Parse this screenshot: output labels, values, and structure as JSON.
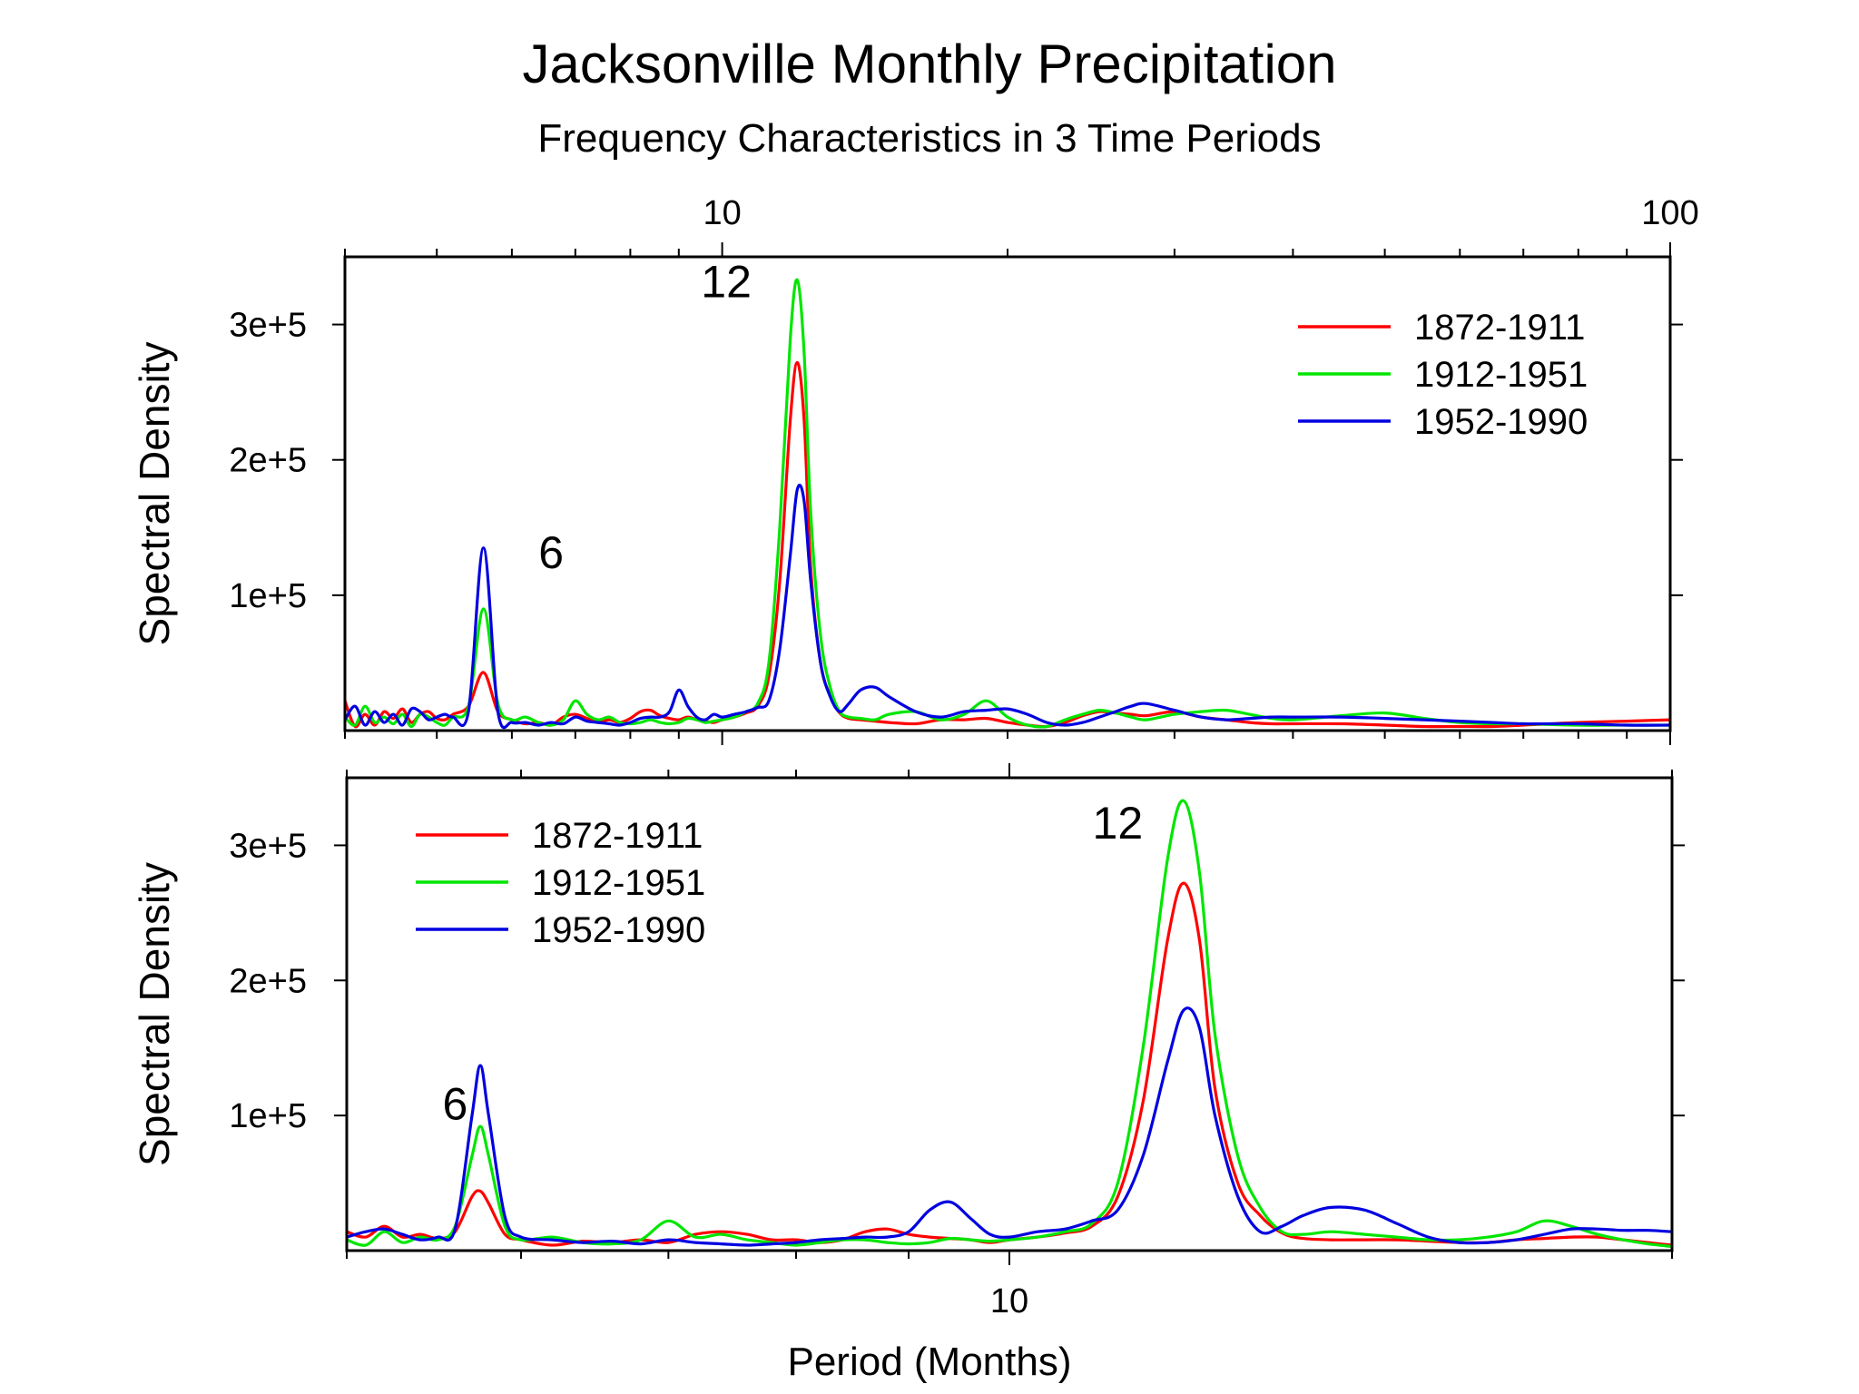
{
  "title": "Jacksonville Monthly Precipitation",
  "subtitle": "Frequency Characteristics in 3 Time Periods",
  "xlabel": "Period (Months)",
  "colors": {
    "1872-1911": "#ff0000",
    "1912-1951": "#00e600",
    "1952-1990": "#0000e0"
  },
  "chart_data": [
    {
      "type": "line",
      "panel": "top",
      "xscale": "log",
      "xlim": [
        4.0,
        100
      ],
      "ylim": [
        0,
        350000
      ],
      "xticks": [
        10,
        100
      ],
      "xtick_labels": [
        "10",
        "100"
      ],
      "xtick_position": "top",
      "yticks": [
        100000,
        200000,
        300000
      ],
      "ytick_labels": [
        "1e+5",
        "2e+5",
        "3e+5"
      ],
      "ylabel": "Spectral Density",
      "legend_position": "top-right",
      "annotations": [
        {
          "text": "12",
          "x": 10.1,
          "y": 320000
        },
        {
          "text": "6",
          "x": 6.6,
          "y": 120000
        }
      ],
      "series": [
        {
          "name": "1872-1911",
          "color": "#ff0000",
          "x": [
            4.0,
            4.1,
            4.2,
            4.3,
            4.4,
            4.5,
            4.6,
            4.7,
            4.8,
            4.9,
            5.0,
            5.1,
            5.2,
            5.4,
            5.6,
            5.8,
            6.0,
            6.2,
            6.4,
            6.6,
            6.8,
            7.0,
            7.2,
            7.4,
            7.6,
            7.8,
            8.0,
            8.2,
            8.4,
            8.6,
            8.8,
            9.0,
            9.2,
            9.4,
            9.6,
            9.8,
            10.0,
            10.3,
            10.6,
            10.9,
            11.2,
            11.5,
            11.8,
            12.0,
            12.2,
            12.4,
            12.7,
            13.0,
            13.3,
            13.6,
            14.0,
            14.5,
            15,
            16,
            17,
            18,
            19,
            20,
            21,
            22,
            23,
            24,
            25,
            26,
            27,
            28,
            30,
            32,
            34,
            36,
            38,
            40,
            45,
            50,
            55,
            60,
            65,
            70,
            80,
            90,
            100
          ],
          "y": [
            22000,
            3000,
            12000,
            4000,
            14000,
            9000,
            16000,
            6000,
            12000,
            14000,
            9000,
            8000,
            12000,
            18000,
            43000,
            14000,
            8000,
            5000,
            6000,
            4000,
            10000,
            12000,
            9000,
            6000,
            8000,
            6000,
            9000,
            14000,
            15000,
            11000,
            9000,
            8000,
            10000,
            8000,
            7000,
            6000,
            8000,
            10000,
            13000,
            18000,
            40000,
            110000,
            230000,
            272000,
            230000,
            120000,
            50000,
            26000,
            13000,
            9000,
            8000,
            7000,
            6000,
            5000,
            8000,
            8000,
            9000,
            6000,
            4000,
            3000,
            6000,
            11000,
            14000,
            13000,
            12000,
            11000,
            14000,
            10000,
            8000,
            6000,
            5000,
            5000,
            5000,
            4000,
            3000,
            3000,
            3000,
            4000,
            6000,
            7000,
            8000
          ]
        },
        {
          "name": "1912-1951",
          "color": "#00e600",
          "x": [
            4.0,
            4.1,
            4.2,
            4.3,
            4.4,
            4.5,
            4.6,
            4.7,
            4.8,
            4.9,
            5.0,
            5.1,
            5.2,
            5.4,
            5.6,
            5.8,
            6.0,
            6.2,
            6.4,
            6.6,
            6.8,
            7.0,
            7.2,
            7.4,
            7.6,
            7.8,
            8.0,
            8.2,
            8.4,
            8.6,
            8.8,
            9.0,
            9.2,
            9.4,
            9.6,
            9.8,
            10.0,
            10.3,
            10.6,
            10.9,
            11.2,
            11.5,
            11.8,
            12.0,
            12.2,
            12.4,
            12.7,
            13.0,
            13.3,
            13.6,
            14.0,
            14.5,
            15,
            16,
            17,
            18,
            19,
            20,
            21,
            22,
            23,
            24,
            25,
            26,
            27,
            28,
            30,
            32,
            34,
            36,
            38,
            40,
            45,
            50,
            55,
            60,
            65,
            70,
            80,
            90,
            100
          ],
          "y": [
            10000,
            4000,
            18000,
            6000,
            10000,
            5000,
            12000,
            3000,
            12000,
            10000,
            6000,
            4000,
            10000,
            18000,
            90000,
            20000,
            8000,
            10000,
            6000,
            4000,
            8000,
            22000,
            12000,
            8000,
            10000,
            6000,
            5000,
            6000,
            8000,
            6000,
            5000,
            6000,
            9000,
            8000,
            6000,
            7000,
            8000,
            10000,
            14000,
            20000,
            50000,
            150000,
            290000,
            333000,
            280000,
            160000,
            70000,
            32000,
            14000,
            10000,
            9000,
            8000,
            12000,
            14000,
            8000,
            12000,
            22000,
            10000,
            4000,
            3000,
            8000,
            12000,
            15000,
            13000,
            10000,
            8000,
            12000,
            14000,
            15000,
            12000,
            9000,
            8000,
            11000,
            13000,
            9000,
            6000,
            5000,
            5000,
            4000,
            4000,
            4000
          ]
        },
        {
          "name": "1952-1990",
          "color": "#0000e0",
          "x": [
            4.0,
            4.1,
            4.2,
            4.3,
            4.4,
            4.5,
            4.6,
            4.7,
            4.8,
            4.9,
            5.0,
            5.1,
            5.2,
            5.4,
            5.6,
            5.8,
            6.0,
            6.2,
            6.4,
            6.6,
            6.8,
            7.0,
            7.2,
            7.4,
            7.6,
            7.8,
            8.0,
            8.2,
            8.4,
            8.6,
            8.8,
            9.0,
            9.2,
            9.4,
            9.6,
            9.8,
            10.0,
            10.3,
            10.6,
            10.9,
            11.2,
            11.5,
            11.8,
            12.0,
            12.2,
            12.4,
            12.7,
            13.0,
            13.3,
            13.6,
            14.0,
            14.5,
            15,
            16,
            17,
            18,
            19,
            20,
            21,
            22,
            23,
            24,
            25,
            26,
            27,
            28,
            30,
            32,
            34,
            36,
            38,
            40,
            45,
            50,
            55,
            60,
            65,
            70,
            80,
            90,
            100
          ],
          "y": [
            8000,
            18000,
            4000,
            14000,
            6000,
            12000,
            4000,
            16000,
            14000,
            8000,
            10000,
            12000,
            10000,
            14000,
            135000,
            14000,
            6000,
            6000,
            4000,
            6000,
            5000,
            10000,
            7000,
            6000,
            5000,
            4000,
            6000,
            9000,
            10000,
            10000,
            14000,
            30000,
            18000,
            10000,
            8000,
            12000,
            10000,
            12000,
            14000,
            17000,
            22000,
            60000,
            130000,
            178000,
            170000,
            110000,
            50000,
            25000,
            14000,
            20000,
            30000,
            32000,
            25000,
            14000,
            10000,
            14000,
            15000,
            16000,
            12000,
            6000,
            4000,
            6000,
            10000,
            14000,
            18000,
            20000,
            15000,
            10000,
            8000,
            9000,
            10000,
            10000,
            10000,
            9000,
            8000,
            7000,
            6000,
            5000,
            5000,
            4000,
            4000
          ]
        }
      ]
    },
    {
      "type": "line",
      "panel": "bottom",
      "xscale": "log",
      "xlim": [
        5.0,
        20.0
      ],
      "ylim": [
        0,
        350000
      ],
      "xticks": [
        10
      ],
      "xtick_labels": [
        "10"
      ],
      "xtick_position": "bottom",
      "yticks": [
        100000,
        200000,
        300000
      ],
      "ytick_labels": [
        "1e+5",
        "2e+5",
        "3e+5"
      ],
      "ylabel": "Spectral Density",
      "xlabel": "Period (Months)",
      "legend_position": "top-left",
      "annotations": [
        {
          "text": "12",
          "x": 11.2,
          "y": 305000
        },
        {
          "text": "6",
          "x": 5.6,
          "y": 97000
        }
      ],
      "series": [
        {
          "name": "1872-1911",
          "color": "#ff0000",
          "x": [
            5.0,
            5.1,
            5.2,
            5.3,
            5.4,
            5.5,
            5.6,
            5.7,
            5.75,
            5.8,
            5.9,
            6.0,
            6.2,
            6.4,
            6.6,
            6.8,
            7.0,
            7.2,
            7.4,
            7.6,
            7.8,
            8.0,
            8.2,
            8.4,
            8.6,
            8.8,
            9.0,
            9.2,
            9.4,
            9.6,
            9.8,
            10.0,
            10.3,
            10.6,
            10.9,
            11.2,
            11.5,
            11.8,
            12.0,
            12.2,
            12.4,
            12.7,
            13.0,
            13.3,
            13.6,
            14.0,
            14.5,
            15.0,
            15.5,
            16.0,
            16.5,
            17.0,
            17.5,
            18.0,
            18.5,
            19.0,
            19.5,
            20.0
          ],
          "y": [
            14000,
            10000,
            18000,
            10000,
            12000,
            9000,
            14000,
            40000,
            44000,
            35000,
            12000,
            8000,
            4000,
            7000,
            6000,
            8000,
            6000,
            12000,
            14000,
            12000,
            8000,
            8000,
            6000,
            8000,
            14000,
            16000,
            12000,
            10000,
            9000,
            8000,
            6000,
            8000,
            10000,
            13000,
            18000,
            40000,
            110000,
            230000,
            272000,
            230000,
            120000,
            50000,
            26000,
            13000,
            9000,
            8000,
            8000,
            8000,
            7000,
            6000,
            6000,
            8000,
            9000,
            10000,
            10000,
            8000,
            6000,
            4000
          ]
        },
        {
          "name": "1912-1951",
          "color": "#00e600",
          "x": [
            5.0,
            5.1,
            5.2,
            5.3,
            5.4,
            5.5,
            5.6,
            5.7,
            5.75,
            5.8,
            5.9,
            6.0,
            6.2,
            6.4,
            6.6,
            6.8,
            7.0,
            7.2,
            7.4,
            7.6,
            7.8,
            8.0,
            8.2,
            8.4,
            8.6,
            8.8,
            9.0,
            9.2,
            9.4,
            9.6,
            9.8,
            10.0,
            10.3,
            10.6,
            10.9,
            11.2,
            11.5,
            11.8,
            12.0,
            12.2,
            12.4,
            12.7,
            13.0,
            13.3,
            13.6,
            14.0,
            14.5,
            15.0,
            15.5,
            16.0,
            16.5,
            17.0,
            17.5,
            18.0,
            18.5,
            19.0,
            19.5,
            20.0
          ],
          "y": [
            8000,
            4000,
            14000,
            6000,
            10000,
            8000,
            18000,
            70000,
            92000,
            70000,
            18000,
            8000,
            10000,
            6000,
            5000,
            8000,
            22000,
            10000,
            12000,
            8000,
            6000,
            4000,
            6000,
            8000,
            8000,
            6000,
            5000,
            6000,
            9000,
            8000,
            7000,
            8000,
            10000,
            14000,
            20000,
            50000,
            150000,
            290000,
            333000,
            280000,
            160000,
            70000,
            32000,
            14000,
            12000,
            14000,
            12000,
            10000,
            8000,
            8000,
            10000,
            14000,
            22000,
            18000,
            12000,
            8000,
            5000,
            3000
          ]
        },
        {
          "name": "1952-1990",
          "color": "#0000e0",
          "x": [
            5.0,
            5.1,
            5.2,
            5.3,
            5.4,
            5.5,
            5.6,
            5.7,
            5.75,
            5.8,
            5.9,
            6.0,
            6.2,
            6.4,
            6.6,
            6.8,
            7.0,
            7.2,
            7.4,
            7.6,
            7.8,
            8.0,
            8.2,
            8.4,
            8.6,
            8.8,
            9.0,
            9.2,
            9.4,
            9.6,
            9.8,
            10.0,
            10.3,
            10.6,
            10.9,
            11.2,
            11.5,
            11.8,
            12.0,
            12.2,
            12.4,
            12.7,
            13.0,
            13.3,
            13.6,
            14.0,
            14.5,
            15.0,
            15.5,
            16.0,
            16.5,
            17.0,
            17.5,
            18.0,
            18.5,
            19.0,
            19.5,
            20.0
          ],
          "y": [
            10000,
            14000,
            16000,
            12000,
            8000,
            10000,
            16000,
            100000,
            137000,
            100000,
            25000,
            10000,
            8000,
            6000,
            7000,
            5000,
            8000,
            6000,
            5000,
            4000,
            5000,
            6000,
            8000,
            9000,
            10000,
            10000,
            14000,
            30000,
            36000,
            24000,
            12000,
            10000,
            14000,
            16000,
            22000,
            30000,
            70000,
            140000,
            178000,
            165000,
            100000,
            40000,
            14000,
            18000,
            26000,
            32000,
            30000,
            20000,
            10000,
            6000,
            6000,
            8000,
            12000,
            16000,
            16000,
            15000,
            15000,
            14000
          ]
        }
      ]
    }
  ]
}
